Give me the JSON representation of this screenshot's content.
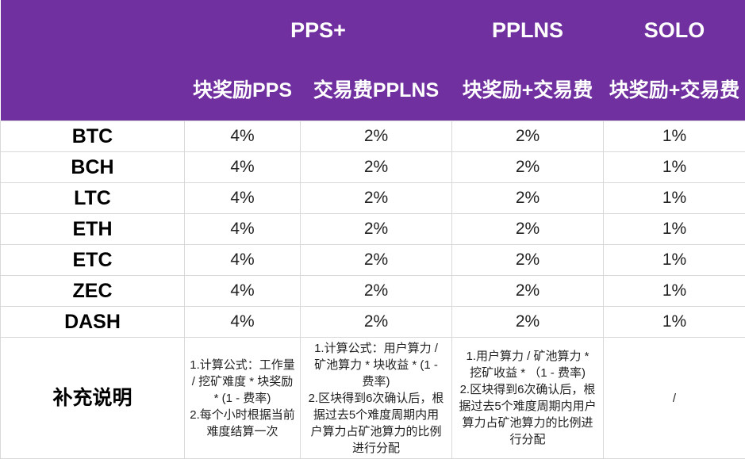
{
  "header": {
    "groups": {
      "pps_plus": "PPS+",
      "pplns": "PPLNS",
      "solo": "SOLO"
    },
    "subheaders": {
      "block_reward_pps": "块奖励PPS",
      "tx_fee_pplns": "交易费PPLNS",
      "pplns_reward": "块奖励+交易费",
      "solo_reward": "块奖励+交易费"
    }
  },
  "rows": [
    {
      "coin": "BTC",
      "pps": "4%",
      "pps_tx": "2%",
      "pplns": "2%",
      "solo": "1%"
    },
    {
      "coin": "BCH",
      "pps": "4%",
      "pps_tx": "2%",
      "pplns": "2%",
      "solo": "1%"
    },
    {
      "coin": "LTC",
      "pps": "4%",
      "pps_tx": "2%",
      "pplns": "2%",
      "solo": "1%"
    },
    {
      "coin": "ETH",
      "pps": "4%",
      "pps_tx": "2%",
      "pplns": "2%",
      "solo": "1%"
    },
    {
      "coin": "ETC",
      "pps": "4%",
      "pps_tx": "2%",
      "pplns": "2%",
      "solo": "1%"
    },
    {
      "coin": "ZEC",
      "pps": "4%",
      "pps_tx": "2%",
      "pplns": "2%",
      "solo": "1%"
    },
    {
      "coin": "DASH",
      "pps": "4%",
      "pps_tx": "2%",
      "pplns": "2%",
      "solo": "1%"
    }
  ],
  "notes": {
    "label": "补充说明",
    "pps": "1.计算公式：工作量\n/ 挖矿难度 * 块奖励\n* (1 - 费率)\n2.每个小时根据当前\n难度结算一次",
    "pps_tx": "1.计算公式：用户算力 /\n矿池算力 * 块收益 * (1 -\n费率)\n2.区块得到6次确认后，根\n据过去5个难度周期内用\n户算力占矿池算力的比例\n进行分配",
    "pplns": "1.用户算力 / 矿池算力 *\n挖矿收益 * （1 - 费率)\n2.区块得到6次确认后，根\n据过去5个难度周期内用户\n算力占矿池算力的比例进\n行分配",
    "solo": "/"
  }
}
